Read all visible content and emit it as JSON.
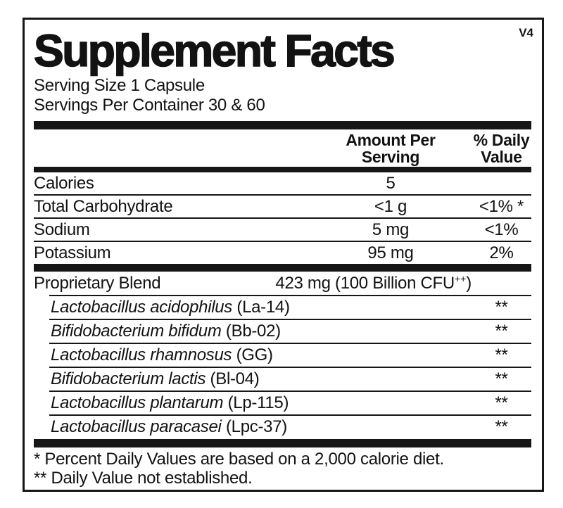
{
  "colors": {
    "text": "#121212",
    "bar": "#161616",
    "background": "#ffffff"
  },
  "label": {
    "title": "Supplement Facts",
    "version": "V4",
    "serving_size": "Serving Size 1 Capsule",
    "servings_per_container": "Servings Per Container 30 & 60",
    "header": {
      "amount": "Amount Per Serving",
      "daily_value": "% Daily Value"
    },
    "nutrients": [
      {
        "name": "Calories",
        "amount": "5",
        "dv": ""
      },
      {
        "name": "Total Carbohydrate",
        "amount": "<1 g",
        "dv": "<1% *"
      },
      {
        "name": "Sodium",
        "amount": "5 mg",
        "dv": "<1%"
      },
      {
        "name": "Potassium",
        "amount": "95 mg",
        "dv": "2%"
      }
    ],
    "blend": {
      "name": "Proprietary Blend",
      "amount_main": "423 mg (100 Billion CFU",
      "amount_sup": "++",
      "amount_close": ")"
    },
    "ingredients": [
      {
        "species": "Lactobacillus acidophilus",
        "strain": " (La-14)",
        "dv": "**"
      },
      {
        "species": "Bifidobacterium bifidum",
        "strain": " (Bb-02)",
        "dv": "**"
      },
      {
        "species": "Lactobacillus rhamnosus",
        "strain": " (GG)",
        "dv": "**"
      },
      {
        "species": "Bifidobacterium lactis",
        "strain": " (Bl-04)",
        "dv": "**"
      },
      {
        "species": "Lactobacillus plantarum",
        "strain": " (Lp-115)",
        "dv": "**"
      },
      {
        "species": "Lactobacillus paracasei",
        "strain": " (Lpc-37)",
        "dv": "**"
      }
    ],
    "footnotes": [
      "* Percent Daily Values are based on a 2,000 calorie diet.",
      "** Daily Value not established."
    ]
  }
}
